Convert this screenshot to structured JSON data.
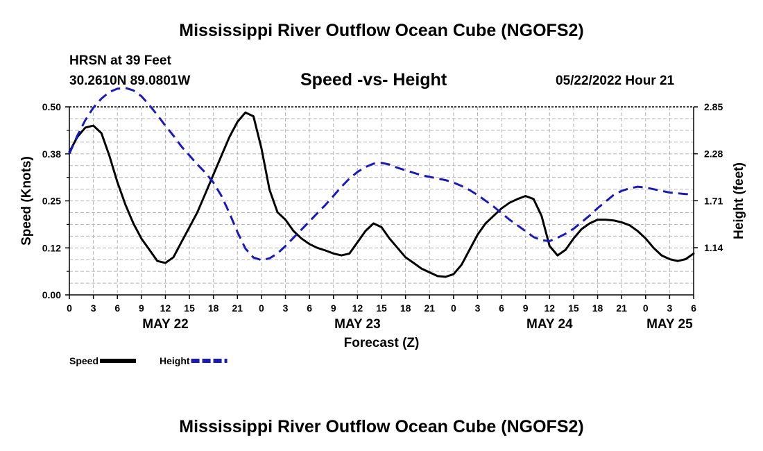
{
  "page": {
    "title_top": "Mississippi River Outflow Ocean Cube (NGOFS2)",
    "title_bottom": "Mississippi River Outflow Ocean Cube (NGOFS2)"
  },
  "station": {
    "name": "HRSN at 39 Feet",
    "coords": "30.2610N  89.0801W",
    "datetime": "05/22/2022 Hour 21"
  },
  "chart_data": {
    "type": "line",
    "title": "Speed -vs- Height",
    "xlabel": "Forecast (Z)",
    "ylabel_left": "Speed (Knots)",
    "ylabel_right": "Height (feet)",
    "x_range_hours": [
      0,
      78
    ],
    "x_tick_labels": [
      "0",
      "3",
      "6",
      "9",
      "12",
      "15",
      "18",
      "21",
      "0",
      "3",
      "6",
      "9",
      "12",
      "15",
      "18",
      "21",
      "0",
      "3",
      "6",
      "9",
      "12",
      "15",
      "18",
      "21",
      "0",
      "3",
      "6"
    ],
    "date_labels": [
      {
        "label": "MAY 22",
        "hour": 12
      },
      {
        "label": "MAY 23",
        "hour": 36
      },
      {
        "label": "MAY 24",
        "hour": 60
      },
      {
        "label": "MAY 25",
        "hour": 75
      }
    ],
    "y_left": {
      "range": [
        0,
        0.5
      ],
      "ticks": [
        0.0,
        0.125,
        0.25,
        0.375,
        0.5
      ],
      "tick_labels": [
        "0.00",
        "0.12",
        "0.25",
        "0.38",
        "0.50"
      ]
    },
    "y_right": {
      "range": [
        0.567,
        2.85
      ],
      "ticks": [
        1.14,
        1.71,
        2.28,
        2.85
      ],
      "tick_labels": [
        "1.14",
        "1.71",
        "2.28",
        "2.85"
      ]
    },
    "grid": true,
    "series": [
      {
        "name": "Speed",
        "axis": "left",
        "color": "#000000",
        "dash": "solid",
        "points": [
          [
            0,
            0.38
          ],
          [
            1,
            0.42
          ],
          [
            2,
            0.445
          ],
          [
            3,
            0.45
          ],
          [
            4,
            0.43
          ],
          [
            5,
            0.37
          ],
          [
            6,
            0.3
          ],
          [
            7,
            0.24
          ],
          [
            8,
            0.19
          ],
          [
            9,
            0.15
          ],
          [
            10,
            0.12
          ],
          [
            11,
            0.09
          ],
          [
            12,
            0.085
          ],
          [
            13,
            0.1
          ],
          [
            14,
            0.14
          ],
          [
            15,
            0.18
          ],
          [
            16,
            0.22
          ],
          [
            17,
            0.27
          ],
          [
            18,
            0.32
          ],
          [
            19,
            0.37
          ],
          [
            20,
            0.42
          ],
          [
            21,
            0.46
          ],
          [
            22,
            0.485
          ],
          [
            23,
            0.475
          ],
          [
            24,
            0.39
          ],
          [
            25,
            0.28
          ],
          [
            26,
            0.22
          ],
          [
            27,
            0.2
          ],
          [
            28,
            0.17
          ],
          [
            29,
            0.15
          ],
          [
            30,
            0.135
          ],
          [
            31,
            0.125
          ],
          [
            32,
            0.118
          ],
          [
            33,
            0.11
          ],
          [
            34,
            0.105
          ],
          [
            35,
            0.11
          ],
          [
            36,
            0.14
          ],
          [
            37,
            0.17
          ],
          [
            38,
            0.19
          ],
          [
            39,
            0.18
          ],
          [
            40,
            0.15
          ],
          [
            41,
            0.125
          ],
          [
            42,
            0.1
          ],
          [
            43,
            0.085
          ],
          [
            44,
            0.07
          ],
          [
            45,
            0.06
          ],
          [
            46,
            0.05
          ],
          [
            47,
            0.048
          ],
          [
            48,
            0.055
          ],
          [
            49,
            0.08
          ],
          [
            50,
            0.12
          ],
          [
            51,
            0.16
          ],
          [
            52,
            0.19
          ],
          [
            53,
            0.21
          ],
          [
            54,
            0.23
          ],
          [
            55,
            0.245
          ],
          [
            56,
            0.255
          ],
          [
            57,
            0.263
          ],
          [
            58,
            0.255
          ],
          [
            59,
            0.21
          ],
          [
            60,
            0.13
          ],
          [
            61,
            0.105
          ],
          [
            62,
            0.12
          ],
          [
            63,
            0.15
          ],
          [
            64,
            0.175
          ],
          [
            65,
            0.19
          ],
          [
            66,
            0.2
          ],
          [
            67,
            0.2
          ],
          [
            68,
            0.198
          ],
          [
            69,
            0.193
          ],
          [
            70,
            0.185
          ],
          [
            71,
            0.17
          ],
          [
            72,
            0.15
          ],
          [
            73,
            0.125
          ],
          [
            74,
            0.105
          ],
          [
            75,
            0.095
          ],
          [
            76,
            0.09
          ],
          [
            77,
            0.095
          ],
          [
            78,
            0.11
          ]
        ]
      },
      {
        "name": "Height",
        "axis": "right",
        "color": "#1818c8",
        "dash": "dashed",
        "points": [
          [
            0,
            2.28
          ],
          [
            1,
            2.5
          ],
          [
            2,
            2.69
          ],
          [
            3,
            2.84
          ],
          [
            4,
            2.95
          ],
          [
            5,
            3.03
          ],
          [
            6,
            3.07
          ],
          [
            7,
            3.08
          ],
          [
            8,
            3.05
          ],
          [
            9,
            2.98
          ],
          [
            10,
            2.87
          ],
          [
            11,
            2.75
          ],
          [
            12,
            2.62
          ],
          [
            13,
            2.5
          ],
          [
            14,
            2.37
          ],
          [
            15,
            2.26
          ],
          [
            16,
            2.15
          ],
          [
            17,
            2.05
          ],
          [
            18,
            1.93
          ],
          [
            19,
            1.77
          ],
          [
            20,
            1.56
          ],
          [
            21,
            1.33
          ],
          [
            22,
            1.13
          ],
          [
            23,
            1.02
          ],
          [
            24,
            0.99
          ],
          [
            25,
            1.01
          ],
          [
            26,
            1.07
          ],
          [
            27,
            1.16
          ],
          [
            28,
            1.26
          ],
          [
            29,
            1.36
          ],
          [
            30,
            1.46
          ],
          [
            31,
            1.56
          ],
          [
            32,
            1.66
          ],
          [
            33,
            1.77
          ],
          [
            34,
            1.88
          ],
          [
            35,
            1.98
          ],
          [
            36,
            2.06
          ],
          [
            37,
            2.12
          ],
          [
            38,
            2.16
          ],
          [
            39,
            2.17
          ],
          [
            40,
            2.15
          ],
          [
            41,
            2.11
          ],
          [
            42,
            2.08
          ],
          [
            43,
            2.05
          ],
          [
            44,
            2.02
          ],
          [
            45,
            2.0
          ],
          [
            46,
            1.98
          ],
          [
            47,
            1.96
          ],
          [
            48,
            1.93
          ],
          [
            49,
            1.89
          ],
          [
            50,
            1.84
          ],
          [
            51,
            1.78
          ],
          [
            52,
            1.71
          ],
          [
            53,
            1.64
          ],
          [
            54,
            1.56
          ],
          [
            55,
            1.48
          ],
          [
            56,
            1.41
          ],
          [
            57,
            1.34
          ],
          [
            58,
            1.27
          ],
          [
            59,
            1.23
          ],
          [
            60,
            1.22
          ],
          [
            61,
            1.26
          ],
          [
            62,
            1.31
          ],
          [
            63,
            1.37
          ],
          [
            64,
            1.45
          ],
          [
            65,
            1.53
          ],
          [
            66,
            1.62
          ],
          [
            67,
            1.7
          ],
          [
            68,
            1.78
          ],
          [
            69,
            1.83
          ],
          [
            70,
            1.86
          ],
          [
            71,
            1.88
          ],
          [
            72,
            1.87
          ],
          [
            73,
            1.85
          ],
          [
            74,
            1.83
          ],
          [
            75,
            1.81
          ],
          [
            76,
            1.8
          ],
          [
            77,
            1.79
          ],
          [
            78,
            1.79
          ]
        ]
      }
    ],
    "legend": [
      {
        "label": "Speed",
        "color": "#000000",
        "dash": "solid"
      },
      {
        "label": "Height",
        "color": "#1818c8",
        "dash": "dashed"
      }
    ],
    "legend_placement": "bottom-left"
  }
}
